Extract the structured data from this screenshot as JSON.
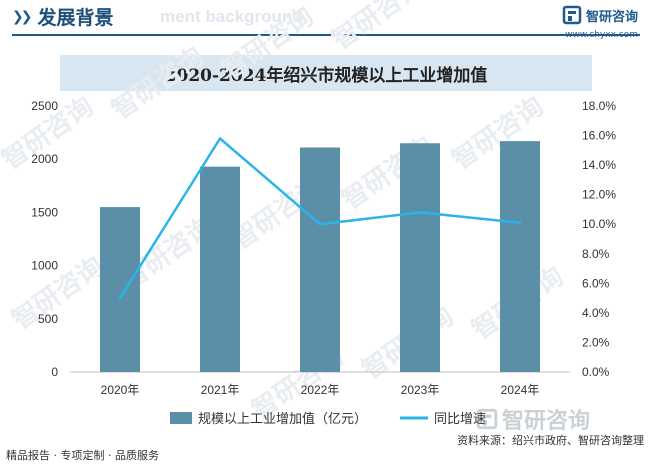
{
  "header": {
    "section_title": "发展背景",
    "section_subtitle": "ment background",
    "brand_name": "智研咨询",
    "brand_url": "www.chyxx.com"
  },
  "chart_data": {
    "type": "bar",
    "title": "2020-2024年绍兴市规模以上工业增加值",
    "categories": [
      "2020年",
      "2021年",
      "2022年",
      "2023年",
      "2024年"
    ],
    "series": [
      {
        "name": "规模以上工业增加值（亿元）",
        "type": "bar",
        "axis": "left",
        "color": "#5b8fa8",
        "values": [
          1550,
          1930,
          2110,
          2150,
          2170
        ]
      },
      {
        "name": "同比增速",
        "type": "line",
        "axis": "right",
        "color": "#29b5e8",
        "values": [
          5.0,
          15.8,
          10.0,
          10.8,
          10.1
        ]
      }
    ],
    "y_left": {
      "min": 0,
      "max": 2500,
      "ticks": [
        "0",
        "500",
        "1000",
        "1500",
        "2000",
        "2500"
      ]
    },
    "y_right": {
      "min": 0,
      "max": 18,
      "ticks": [
        "0.0%",
        "2.0%",
        "4.0%",
        "6.0%",
        "8.0%",
        "10.0%",
        "12.0%",
        "14.0%",
        "16.0%",
        "18.0%"
      ]
    },
    "legend_position": "bottom",
    "grid": false
  },
  "watermark": {
    "text": "智研咨询"
  },
  "footer": {
    "left": "精品报告 · 专项定制 · 品质服务",
    "right": "资料来源：绍兴市政府、智研咨询整理"
  }
}
